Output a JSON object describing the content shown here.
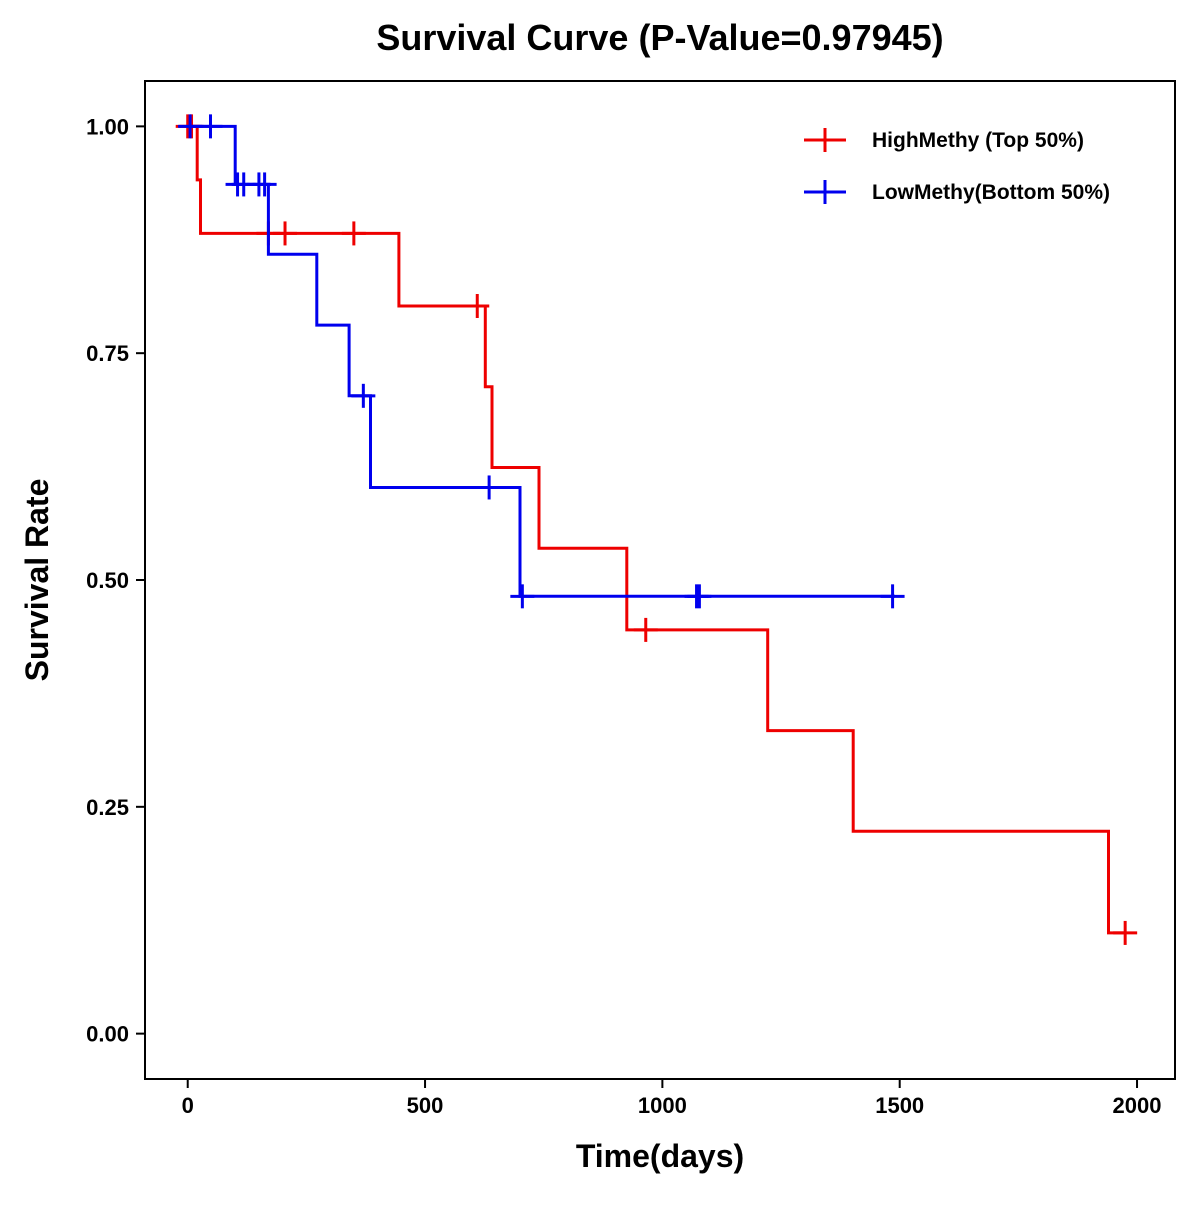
{
  "chart_data": {
    "type": "line",
    "subtype": "kaplan-meier-step",
    "title": "Survival Curve (P-Value=0.97945)",
    "xlabel": "Time(days)",
    "ylabel": "Survival Rate",
    "xlim": [
      -90,
      2080
    ],
    "ylim": [
      -0.05,
      1.05
    ],
    "xticks": [
      0,
      500,
      1000,
      1500,
      2000
    ],
    "xtick_labels": [
      "0",
      "500",
      "1000",
      "1500",
      "2000"
    ],
    "yticks": [
      0,
      0.25,
      0.5,
      0.75,
      1.0
    ],
    "ytick_labels": [
      "0.00",
      "0.25",
      "0.50",
      "0.75",
      "1.00"
    ],
    "grid": false,
    "legend_position": "top-right",
    "series": [
      {
        "name": "HighMethy (Top 50%)",
        "color": "#ee0000",
        "steps": [
          [
            0,
            1.0
          ],
          [
            20,
            0.941
          ],
          [
            27,
            0.882
          ],
          [
            445,
            0.802
          ],
          [
            627,
            0.713
          ],
          [
            641,
            0.624
          ],
          [
            740,
            0.535
          ],
          [
            925,
            0.445
          ],
          [
            1222,
            0.334
          ],
          [
            1402,
            0.223
          ],
          [
            1940,
            0.111
          ],
          [
            1975,
            0.111
          ]
        ],
        "censored": [
          [
            0,
            1.0
          ],
          [
            8,
            1.0
          ],
          [
            170,
            0.882
          ],
          [
            205,
            0.882
          ],
          [
            350,
            0.882
          ],
          [
            610,
            0.802
          ],
          [
            965,
            0.445
          ],
          [
            1975,
            0.111
          ]
        ]
      },
      {
        "name": "LowMethy(Bottom 50%)",
        "color": "#0000ee",
        "steps": [
          [
            0,
            1.0
          ],
          [
            100,
            0.936
          ],
          [
            170,
            0.859
          ],
          [
            272,
            0.781
          ],
          [
            340,
            0.703
          ],
          [
            385,
            0.602
          ],
          [
            700,
            0.482
          ],
          [
            1490,
            0.482
          ]
        ],
        "censored": [
          [
            5,
            1.0
          ],
          [
            48,
            1.0
          ],
          [
            105,
            0.936
          ],
          [
            118,
            0.936
          ],
          [
            150,
            0.936
          ],
          [
            162,
            0.936
          ],
          [
            370,
            0.703
          ],
          [
            635,
            0.602
          ],
          [
            705,
            0.482
          ],
          [
            1072,
            0.482
          ],
          [
            1078,
            0.482
          ],
          [
            1485,
            0.482
          ]
        ]
      }
    ]
  }
}
